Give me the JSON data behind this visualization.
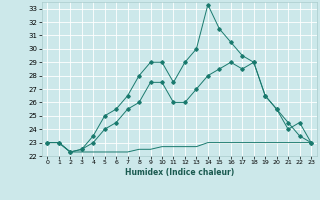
{
  "title": "",
  "xlabel": "Humidex (Indice chaleur)",
  "bg_color": "#cce8ea",
  "grid_color": "#ffffff",
  "line_color": "#1a7a6e",
  "xlim": [
    -0.5,
    23.5
  ],
  "ylim": [
    22,
    33.5
  ],
  "yticks": [
    22,
    23,
    24,
    25,
    26,
    27,
    28,
    29,
    30,
    31,
    32,
    33
  ],
  "xticks": [
    0,
    1,
    2,
    3,
    4,
    5,
    6,
    7,
    8,
    9,
    10,
    11,
    12,
    13,
    14,
    15,
    16,
    17,
    18,
    19,
    20,
    21,
    22,
    23
  ],
  "series1_x": [
    0,
    1,
    2,
    3,
    4,
    5,
    6,
    7,
    8,
    9,
    10,
    11,
    12,
    13,
    14,
    15,
    16,
    17,
    18,
    19,
    20,
    21,
    22,
    23
  ],
  "series1_y": [
    23.0,
    23.0,
    22.3,
    22.3,
    22.3,
    22.3,
    22.3,
    22.3,
    22.5,
    22.5,
    22.7,
    22.7,
    22.7,
    22.7,
    23.0,
    23.0,
    23.0,
    23.0,
    23.0,
    23.0,
    23.0,
    23.0,
    23.0,
    23.0
  ],
  "series2_x": [
    0,
    1,
    2,
    3,
    4,
    5,
    6,
    7,
    8,
    9,
    10,
    11,
    12,
    13,
    14,
    15,
    16,
    17,
    18,
    19,
    20,
    21,
    22,
    23
  ],
  "series2_y": [
    23.0,
    23.0,
    22.3,
    22.5,
    23.5,
    25.0,
    25.5,
    26.5,
    28.0,
    29.0,
    29.0,
    27.5,
    29.0,
    30.0,
    33.3,
    31.5,
    30.5,
    29.5,
    29.0,
    26.5,
    25.5,
    24.0,
    24.5,
    23.0
  ],
  "series3_x": [
    0,
    1,
    2,
    3,
    4,
    5,
    6,
    7,
    8,
    9,
    10,
    11,
    12,
    13,
    14,
    15,
    16,
    17,
    18,
    19,
    20,
    21,
    22,
    23
  ],
  "series3_y": [
    23.0,
    23.0,
    22.3,
    22.5,
    23.0,
    24.0,
    24.5,
    25.5,
    26.0,
    27.5,
    27.5,
    26.0,
    26.0,
    27.0,
    28.0,
    28.5,
    29.0,
    28.5,
    29.0,
    26.5,
    25.5,
    24.5,
    23.5,
    23.0
  ]
}
